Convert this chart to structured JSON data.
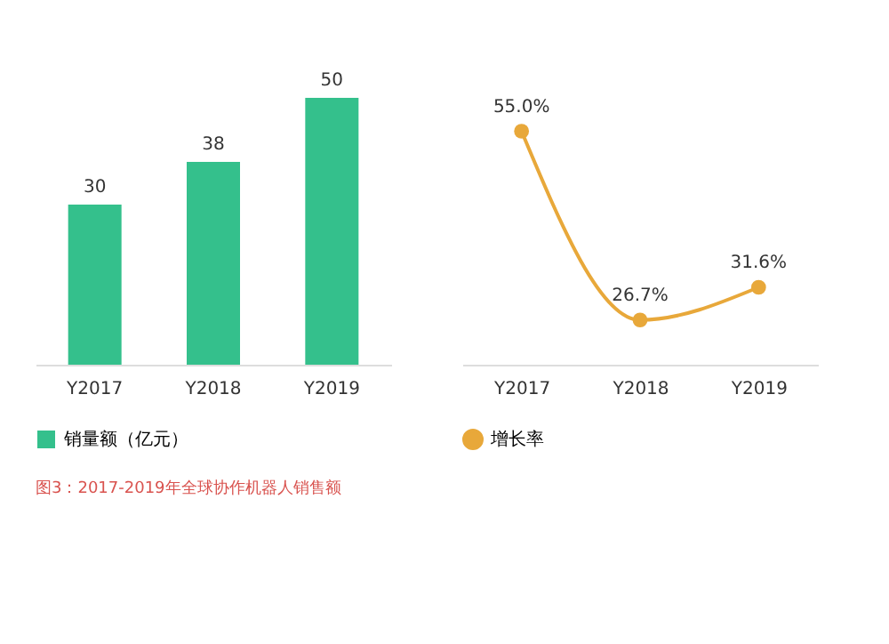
{
  "chart_data": [
    {
      "type": "bar",
      "categories": [
        "Y2017",
        "Y2018",
        "Y2019"
      ],
      "series": [
        {
          "name": "销量额（亿元）",
          "color": "#34c08c",
          "values": [
            30,
            38,
            50
          ]
        }
      ],
      "data_labels": true,
      "legend": "bottom",
      "grid": false,
      "tick_labels": "x",
      "annotations": [
        "图3：2017-2019年全球协作机器人销售额"
      ]
    },
    {
      "type": "line",
      "categories": [
        "Y2017",
        "Y2018",
        "Y2019"
      ],
      "series": [
        {
          "name": "增长率",
          "color": "#e8a83a",
          "values": [
            55.0,
            26.7,
            31.6
          ],
          "value_labels": [
            "55.0%",
            "26.7%",
            "31.6%"
          ]
        }
      ],
      "legend": "bottom",
      "grid": false,
      "marker": "circle",
      "line_style": "solid",
      "tick_labels": "x"
    }
  ]
}
